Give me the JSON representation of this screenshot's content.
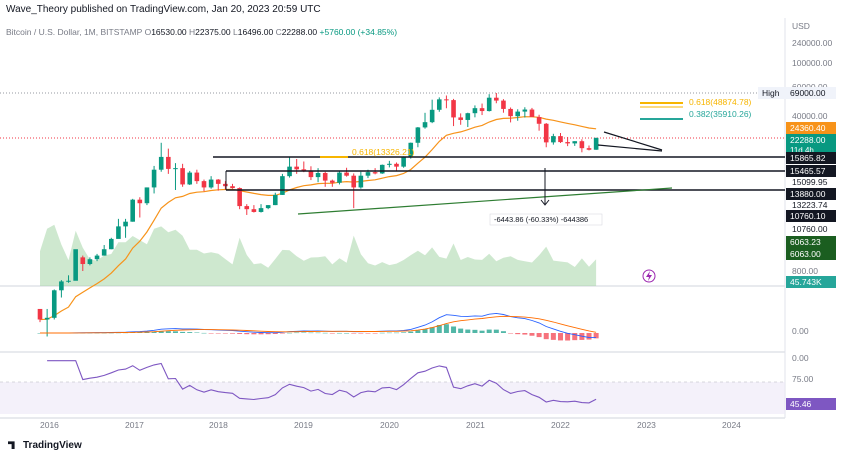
{
  "header": {
    "author_line": "Wave_Theory published on TradingView.com, Jan 20, 2023 20:59 UTC"
  },
  "symbol": {
    "name": "Bitcoin / U.S. Dollar, 1M, BITSTAMP",
    "o_label": "O",
    "o": "16530.00",
    "h_label": "H",
    "h": "22375.00",
    "l_label": "L",
    "l": "16496.00",
    "c_label": "C",
    "c": "22288.00",
    "change": "+5760.00 (+34.85%)"
  },
  "price_axis": {
    "currency": "USD",
    "ticks": [
      "240000.00",
      "100000.00",
      "60000.00",
      "40000.00",
      "15099.95",
      "13223.74",
      "10760.00",
      "800.00"
    ]
  },
  "price_labels": {
    "high_label": "High",
    "high_value": "69000.00",
    "ema_value": "24360.40",
    "last_price": "22288.00",
    "countdown": "11d 4h",
    "level_1": "15865.82",
    "level_2": "15465.57",
    "level_3": "13880.00",
    "level_4": "10760.10",
    "volume_1": "6063.23",
    "volume_2": "6063.00",
    "volume_last": "45.743K"
  },
  "fib_labels": {
    "fib_high_618": "0.618(48874.78)",
    "fib_high_382": "0.382(35910.26)",
    "fib_low_618": "0.618(13326.21)"
  },
  "measure_label": "-6443.86 (-60.33%) -644386",
  "macd_axis": {
    "zero": "0.00",
    "bottom": "0.00"
  },
  "rsi_axis": {
    "level": "75.00",
    "value": "45.46"
  },
  "time_axis": {
    "labels": [
      "2016",
      "2017",
      "2018",
      "2019",
      "2020",
      "2021",
      "2022",
      "2023",
      "2024"
    ]
  },
  "footer": {
    "brand": "TradingView"
  },
  "colors": {
    "up": "#089981",
    "down": "#f23645",
    "ema": "#f7931a",
    "macd_line": "#2962ff",
    "signal_line": "#ff6d00",
    "rsi": "#7e57c2",
    "volume_up": "#a5d6a7",
    "volume_down": "#f8bbd0",
    "fib": "#f7b500",
    "fib_green": "#26a69a"
  },
  "chart_data": {
    "type": "candlestick",
    "series": [
      {
        "name": "",
        "interval": "1M",
        "ohlc": [
          [
            300,
            300,
            215,
            230
          ],
          [
            230,
            300,
            150,
            240
          ],
          [
            240,
            490,
            230,
            480
          ],
          [
            480,
            620,
            400,
            600
          ],
          [
            600,
            700,
            580,
            610
          ],
          [
            610,
            1200,
            620,
            1350
          ],
          [
            1100,
            1150,
            780,
            930
          ],
          [
            930,
            1100,
            900,
            1050
          ],
          [
            1050,
            1200,
            1000,
            1150
          ],
          [
            1150,
            1500,
            1150,
            1350
          ],
          [
            1350,
            1800,
            1350,
            1750
          ],
          [
            1750,
            2900,
            1800,
            2400
          ],
          [
            2400,
            2900,
            1800,
            2700
          ],
          [
            2700,
            4800,
            2700,
            4700
          ],
          [
            4700,
            5000,
            3000,
            4300
          ],
          [
            4300,
            6400,
            4100,
            6400
          ],
          [
            6400,
            11000,
            5500,
            10000
          ],
          [
            10000,
            19700,
            9500,
            13800
          ],
          [
            13800,
            17000,
            9000,
            10200
          ],
          [
            10200,
            11800,
            6000,
            10400
          ],
          [
            10400,
            11600,
            6500,
            6900
          ],
          [
            6900,
            9700,
            6800,
            9300
          ],
          [
            9300,
            10000,
            7000,
            7500
          ],
          [
            7500,
            7800,
            5800,
            6400
          ],
          [
            6400,
            8500,
            6200,
            7800
          ],
          [
            7800,
            7900,
            5900,
            7000
          ],
          [
            7000,
            7500,
            6100,
            6600
          ],
          [
            6600,
            7000,
            6200,
            6300
          ],
          [
            6300,
            6400,
            3700,
            4000
          ],
          [
            4000,
            4200,
            3200,
            3700
          ],
          [
            3700,
            4100,
            3400,
            3450
          ],
          [
            3450,
            4200,
            3400,
            3800
          ],
          [
            3800,
            4100,
            3700,
            4100
          ],
          [
            4100,
            5600,
            4100,
            5300
          ],
          [
            5300,
            9000,
            5300,
            8500
          ],
          [
            8500,
            13800,
            8200,
            10800
          ],
          [
            10800,
            13100,
            9000,
            10100
          ],
          [
            10100,
            12300,
            9400,
            9600
          ],
          [
            9600,
            10900,
            7700,
            8300
          ],
          [
            8300,
            10400,
            7300,
            9200
          ],
          [
            9200,
            9500,
            6500,
            7600
          ],
          [
            7600,
            7800,
            6500,
            7200
          ],
          [
            7200,
            9600,
            6900,
            9300
          ],
          [
            9300,
            10500,
            8400,
            8600
          ],
          [
            8600,
            9100,
            3800,
            6400
          ],
          [
            6400,
            9500,
            6200,
            8600
          ],
          [
            8600,
            10000,
            8100,
            9400
          ],
          [
            9400,
            10400,
            8900,
            9100
          ],
          [
            9100,
            11400,
            9000,
            11300
          ],
          [
            11300,
            12500,
            10600,
            11600
          ],
          [
            11600,
            12000,
            9800,
            10800
          ],
          [
            10800,
            14000,
            10500,
            13800
          ],
          [
            13800,
            19800,
            13200,
            19700
          ],
          [
            19700,
            29300,
            17600,
            29000
          ],
          [
            29000,
            41900,
            28100,
            33100
          ],
          [
            33100,
            58300,
            32300,
            45200
          ],
          [
            45200,
            61800,
            43000,
            58800
          ],
          [
            58800,
            64800,
            47000,
            57700
          ],
          [
            57700,
            59500,
            30000,
            37300
          ],
          [
            37300,
            41300,
            31000,
            35000
          ],
          [
            35000,
            42000,
            29300,
            41500
          ],
          [
            41500,
            50500,
            37400,
            47100
          ],
          [
            47100,
            52900,
            39600,
            43800
          ],
          [
            43800,
            67000,
            43300,
            61300
          ],
          [
            61300,
            69000,
            53300,
            57000
          ],
          [
            57000,
            59100,
            42000,
            46200
          ],
          [
            46200,
            47900,
            32900,
            38500
          ],
          [
            38500,
            45800,
            34300,
            43200
          ],
          [
            43200,
            48200,
            37200,
            45500
          ],
          [
            45500,
            47400,
            37700,
            37700
          ],
          [
            37700,
            39900,
            26700,
            31800
          ],
          [
            31800,
            32400,
            17600,
            19900
          ],
          [
            19900,
            24700,
            18800,
            23300
          ],
          [
            23300,
            25200,
            19600,
            20050
          ],
          [
            20050,
            22800,
            18100,
            19400
          ],
          [
            19400,
            20500,
            18200,
            20500
          ],
          [
            20500,
            21500,
            15500,
            17200
          ],
          [
            17200,
            18400,
            16250,
            16530
          ],
          [
            16530,
            22375,
            16496,
            22288
          ]
        ],
        "first_period": "2016-01"
      },
      {
        "name": "",
        "type": "ema",
        "last": 24360.4
      }
    ],
    "y_scale": "log",
    "ylim": [
      120,
      240000
    ],
    "x_labels": [
      "2016",
      "2017",
      "2018",
      "2019",
      "2020",
      "2021",
      "2022",
      "2023",
      "2024"
    ],
    "ylabel": "USD",
    "levels": [
      15865.82,
      15465.57,
      13880.0
    ],
    "fib_levels": [
      {
        "label": "0.618(48874.78)",
        "value": 48874.78
      },
      {
        "label": "0.382(35910.26)",
        "value": 35910.26
      },
      {
        "label": "0.618(13326.21)",
        "value": 13326.21
      }
    ],
    "high": 69000.0,
    "indicators": {
      "volume": {
        "last": "45.743K"
      },
      "macd": {
        "zero": 0.0
      },
      "rsi": {
        "value": 45.46,
        "upper_band": 75.0,
        "lower_band": 25.0
      }
    }
  }
}
